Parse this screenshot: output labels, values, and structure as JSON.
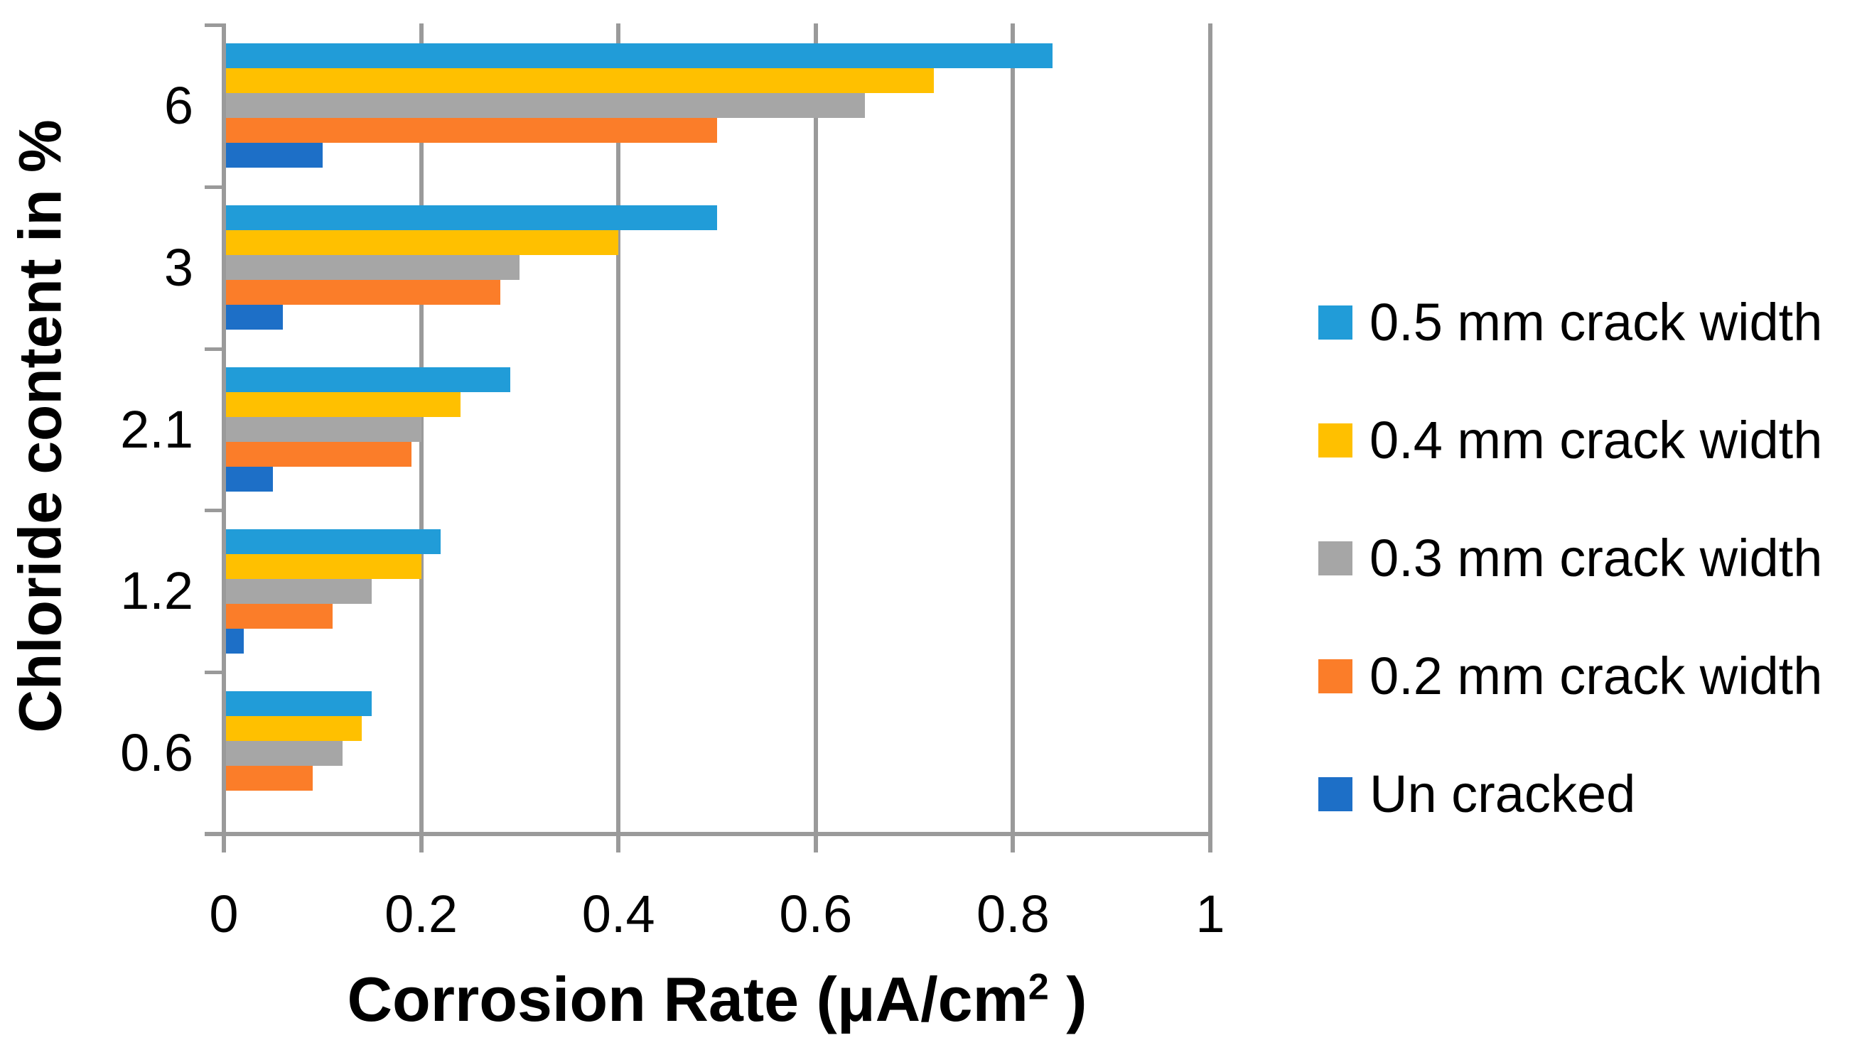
{
  "figure": {
    "background": "#FFFFFF"
  },
  "colors": {
    "axis": "#9A9A9A",
    "grid": "#9A9A9A",
    "text": "#000000"
  },
  "chart_data": {
    "type": "bar",
    "orientation": "horizontal",
    "xlabel": "Corrosion Rate (μA/cm² )",
    "ylabel": "Chloride content in %",
    "categories": [
      "6",
      "3",
      "2.1",
      "1.2",
      "0.6"
    ],
    "series": [
      {
        "name": "0.5 mm crack width",
        "color": "#219CD8",
        "values": [
          0.84,
          0.5,
          0.29,
          0.22,
          0.15
        ]
      },
      {
        "name": "0.4 mm crack width",
        "color": "#FFC000",
        "values": [
          0.72,
          0.4,
          0.24,
          0.2,
          0.14
        ]
      },
      {
        "name": "0.3 mm crack width",
        "color": "#A6A6A6",
        "values": [
          0.65,
          0.3,
          0.2,
          0.15,
          0.12
        ]
      },
      {
        "name": "0.2 mm crack width",
        "color": "#FB7D29",
        "values": [
          0.5,
          0.28,
          0.19,
          0.11,
          0.09
        ]
      },
      {
        "name": "Un cracked",
        "color": "#1D6FC7",
        "values": [
          0.1,
          0.06,
          0.05,
          0.02,
          0
        ]
      }
    ],
    "x_ticks": [
      "0",
      "0.2",
      "0.4",
      "0.6",
      "0.8",
      "1"
    ],
    "xlim": [
      0,
      1
    ],
    "grid": "vertical-only",
    "legend_position": "right"
  },
  "axis_titles": {
    "x_main": "Corrosion Rate (μA/cm",
    "x_sup": "2",
    "x_close": " )",
    "y": "Chloride content in %"
  }
}
